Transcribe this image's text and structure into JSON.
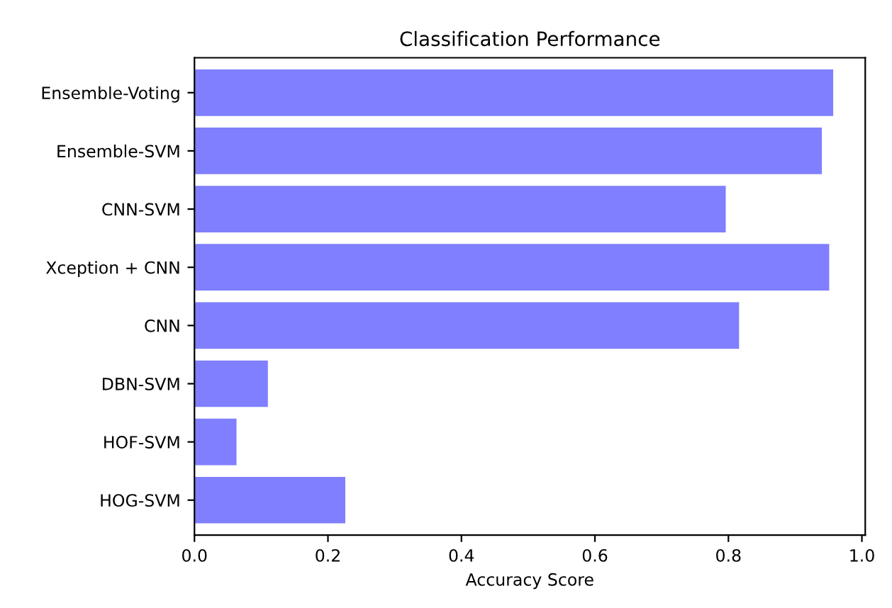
{
  "chart_data": {
    "type": "bar",
    "orientation": "horizontal",
    "title": "Classification Performance",
    "xlabel": "Accuracy Score",
    "categories": [
      "Ensemble-Voting",
      "Ensemble-SVM",
      "CNN-SVM",
      "Xception + CNN",
      "CNN",
      "DBN-SVM",
      "HOF-SVM",
      "HOG-SVM"
    ],
    "values": [
      0.957,
      0.94,
      0.796,
      0.951,
      0.816,
      0.11,
      0.063,
      0.226
    ],
    "color": "#7f7fff",
    "xlim": [
      0,
      1.005
    ],
    "xticks": [
      {
        "value": 0,
        "label": "0.0"
      },
      0.2,
      0.4,
      0.6,
      0.8,
      {
        "value": 1,
        "label": "1.0"
      }
    ],
    "grid": false
  }
}
